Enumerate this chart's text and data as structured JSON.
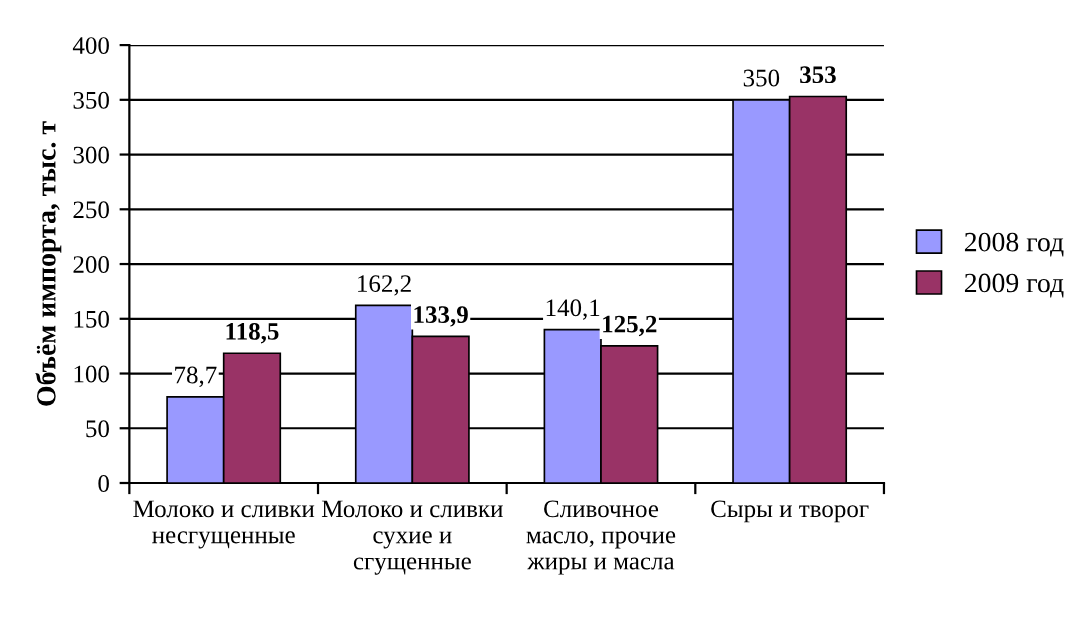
{
  "chart_data": {
    "type": "bar",
    "ylabel": "Объём импорта, тыс. т",
    "categories": [
      "Молоко и сливки несгущенные",
      "Молоко и сливки сухие и сгущенные",
      "Сливочное масло, прочие жиры и масла",
      "Сыры и творог"
    ],
    "series": [
      {
        "name": "2008 год",
        "color": "#9999ff",
        "values": [
          78.7,
          162.2,
          140.1,
          350
        ],
        "value_labels": [
          "78,7",
          "162,2",
          "140,1",
          "350"
        ]
      },
      {
        "name": "2009 год",
        "color": "#993366",
        "values": [
          118.5,
          133.9,
          125.2,
          353
        ],
        "value_labels": [
          "118,5",
          "133,9",
          "125,2",
          "353"
        ]
      }
    ],
    "ylim": [
      0,
      400
    ],
    "yticks": [
      0,
      50,
      100,
      150,
      200,
      250,
      300,
      350,
      400
    ],
    "grid": "y",
    "legend": "right"
  }
}
